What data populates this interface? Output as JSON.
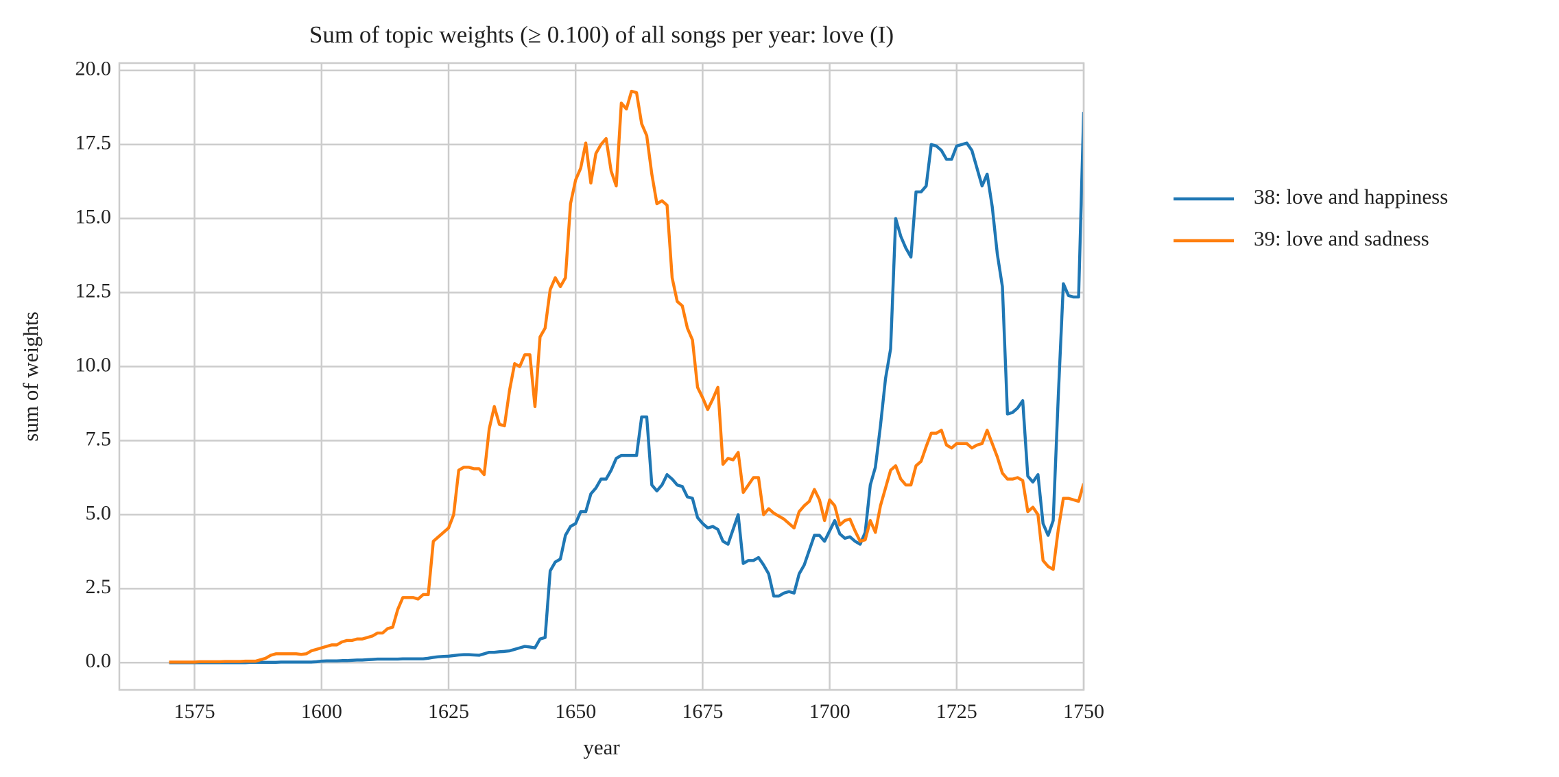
{
  "chart_data": {
    "type": "line",
    "title": "Sum of topic weights (≥ 0.100) of all songs per year: love (I)",
    "x_label": "year",
    "y_label": "sum of weights",
    "x": [
      1570,
      1571,
      1572,
      1573,
      1574,
      1575,
      1576,
      1577,
      1578,
      1579,
      1580,
      1581,
      1582,
      1583,
      1584,
      1585,
      1586,
      1587,
      1588,
      1589,
      1590,
      1591,
      1592,
      1593,
      1594,
      1595,
      1596,
      1597,
      1598,
      1599,
      1600,
      1601,
      1602,
      1603,
      1604,
      1605,
      1606,
      1607,
      1608,
      1609,
      1610,
      1611,
      1612,
      1613,
      1614,
      1615,
      1616,
      1617,
      1618,
      1619,
      1620,
      1621,
      1622,
      1623,
      1624,
      1625,
      1626,
      1627,
      1628,
      1629,
      1630,
      1631,
      1632,
      1633,
      1634,
      1635,
      1636,
      1637,
      1638,
      1639,
      1640,
      1641,
      1642,
      1643,
      1644,
      1645,
      1646,
      1647,
      1648,
      1649,
      1650,
      1651,
      1652,
      1653,
      1654,
      1655,
      1656,
      1657,
      1658,
      1659,
      1660,
      1661,
      1662,
      1663,
      1664,
      1665,
      1666,
      1667,
      1668,
      1669,
      1670,
      1671,
      1672,
      1673,
      1674,
      1675,
      1676,
      1677,
      1678,
      1679,
      1680,
      1681,
      1682,
      1683,
      1684,
      1685,
      1686,
      1687,
      1688,
      1689,
      1690,
      1691,
      1692,
      1693,
      1694,
      1695,
      1696,
      1697,
      1698,
      1699,
      1700,
      1701,
      1702,
      1703,
      1704,
      1705,
      1706,
      1707,
      1708,
      1709,
      1710,
      1711,
      1712,
      1713,
      1714,
      1715,
      1716,
      1717,
      1718,
      1719,
      1720,
      1721,
      1722,
      1723,
      1724,
      1725,
      1726,
      1727,
      1728,
      1729,
      1730,
      1731,
      1732,
      1733,
      1734,
      1735,
      1736,
      1737,
      1738,
      1739,
      1740,
      1741,
      1742,
      1743,
      1744,
      1745,
      1746,
      1747,
      1748,
      1749,
      1750
    ],
    "series": [
      {
        "name": "38: love and happiness",
        "color": "#1f77b4",
        "values": [
          0,
          0,
          0,
          0,
          0,
          0,
          0,
          0,
          0,
          0,
          0,
          0,
          0,
          0,
          0,
          0,
          0.01,
          0.01,
          0.01,
          0.01,
          0.01,
          0.01,
          0.02,
          0.02,
          0.02,
          0.02,
          0.02,
          0.02,
          0.02,
          0.03,
          0.05,
          0.06,
          0.06,
          0.06,
          0.07,
          0.07,
          0.08,
          0.09,
          0.09,
          0.1,
          0.11,
          0.12,
          0.12,
          0.12,
          0.12,
          0.12,
          0.13,
          0.13,
          0.13,
          0.13,
          0.13,
          0.15,
          0.18,
          0.2,
          0.21,
          0.22,
          0.24,
          0.26,
          0.27,
          0.27,
          0.26,
          0.25,
          0.3,
          0.35,
          0.35,
          0.37,
          0.38,
          0.4,
          0.45,
          0.5,
          0.55,
          0.53,
          0.5,
          0.8,
          0.85,
          3.1,
          3.4,
          3.5,
          4.3,
          4.6,
          4.7,
          5.1,
          5.1,
          5.7,
          5.9,
          6.2,
          6.2,
          6.5,
          6.9,
          7.0,
          7.0,
          7.0,
          7.0,
          8.3,
          8.3,
          6.0,
          5.8,
          6.0,
          6.35,
          6.2,
          6.0,
          5.95,
          5.6,
          5.55,
          4.9,
          4.7,
          4.55,
          4.6,
          4.5,
          4.1,
          4.0,
          4.5,
          5.0,
          3.35,
          3.45,
          3.45,
          3.55,
          3.3,
          3.0,
          2.25,
          2.25,
          2.35,
          2.4,
          2.35,
          3.0,
          3.3,
          3.8,
          4.3,
          4.3,
          4.1,
          4.45,
          4.8,
          4.35,
          4.2,
          4.25,
          4.1,
          4.0,
          4.4,
          6.0,
          6.6,
          8.0,
          9.6,
          10.6,
          15.0,
          14.4,
          14.0,
          13.7,
          15.9,
          15.9,
          16.1,
          17.5,
          17.45,
          17.3,
          17.0,
          17.0,
          17.45,
          17.5,
          17.55,
          17.3,
          16.7,
          16.1,
          16.5,
          15.4,
          13.8,
          12.7,
          8.4,
          8.45,
          8.6,
          8.85,
          6.3,
          6.1,
          6.35,
          4.7,
          4.3,
          4.8,
          9.0,
          12.8,
          12.4,
          12.35,
          12.35,
          18.6
        ]
      },
      {
        "name": "39: love and sadness",
        "color": "#ff7f0e",
        "values": [
          0.02,
          0.02,
          0.02,
          0.02,
          0.02,
          0.02,
          0.03,
          0.03,
          0.03,
          0.03,
          0.03,
          0.04,
          0.04,
          0.04,
          0.04,
          0.05,
          0.05,
          0.05,
          0.1,
          0.15,
          0.25,
          0.3,
          0.3,
          0.3,
          0.3,
          0.3,
          0.28,
          0.3,
          0.4,
          0.45,
          0.5,
          0.55,
          0.6,
          0.6,
          0.7,
          0.75,
          0.75,
          0.8,
          0.8,
          0.85,
          0.9,
          1.0,
          1.0,
          1.15,
          1.2,
          1.8,
          2.2,
          2.2,
          2.2,
          2.15,
          2.3,
          2.3,
          4.1,
          4.25,
          4.4,
          4.55,
          5.0,
          6.5,
          6.6,
          6.6,
          6.55,
          6.55,
          6.35,
          7.9,
          8.65,
          8.05,
          8.0,
          9.2,
          10.1,
          10.0,
          10.4,
          10.4,
          8.65,
          11.0,
          11.3,
          12.6,
          13.0,
          12.7,
          13.0,
          15.5,
          16.3,
          16.7,
          17.55,
          16.2,
          17.2,
          17.5,
          17.7,
          16.6,
          16.1,
          18.9,
          18.7,
          19.3,
          19.25,
          18.2,
          17.8,
          16.5,
          15.5,
          15.6,
          15.45,
          13.0,
          12.2,
          12.05,
          11.3,
          10.9,
          9.3,
          8.95,
          8.55,
          8.9,
          9.3,
          6.7,
          6.9,
          6.85,
          7.1,
          5.75,
          6.0,
          6.25,
          6.25,
          5.0,
          5.2,
          5.05,
          4.95,
          4.85,
          4.7,
          4.55,
          5.1,
          5.3,
          5.45,
          5.85,
          5.5,
          4.8,
          5.5,
          5.3,
          4.65,
          4.8,
          4.85,
          4.45,
          4.1,
          4.15,
          4.8,
          4.4,
          5.3,
          5.9,
          6.5,
          6.65,
          6.2,
          6.0,
          6.0,
          6.65,
          6.8,
          7.3,
          7.75,
          7.75,
          7.85,
          7.35,
          7.25,
          7.4,
          7.4,
          7.4,
          7.25,
          7.35,
          7.4,
          7.85,
          7.4,
          6.95,
          6.4,
          6.2,
          6.2,
          6.25,
          6.15,
          5.1,
          5.25,
          5.0,
          3.45,
          3.25,
          3.15,
          4.5,
          5.55,
          5.55,
          5.5,
          5.45,
          6.05
        ]
      }
    ],
    "xlim": [
      1560.2,
      1750
    ],
    "ylim": [
      -0.92,
      20.25
    ],
    "xticks": [
      1575,
      1600,
      1625,
      1650,
      1675,
      1700,
      1725,
      1750
    ],
    "yticks": [
      {
        "value": 0,
        "label": "0.0"
      },
      2.5,
      {
        "value": 5,
        "label": "5.0"
      },
      7.5,
      {
        "value": 10,
        "label": "10.0"
      },
      12.5,
      {
        "value": 15,
        "label": "15.0"
      },
      17.5,
      {
        "value": 20,
        "label": "20.0"
      }
    ],
    "grid": true,
    "legend": "outside right"
  }
}
